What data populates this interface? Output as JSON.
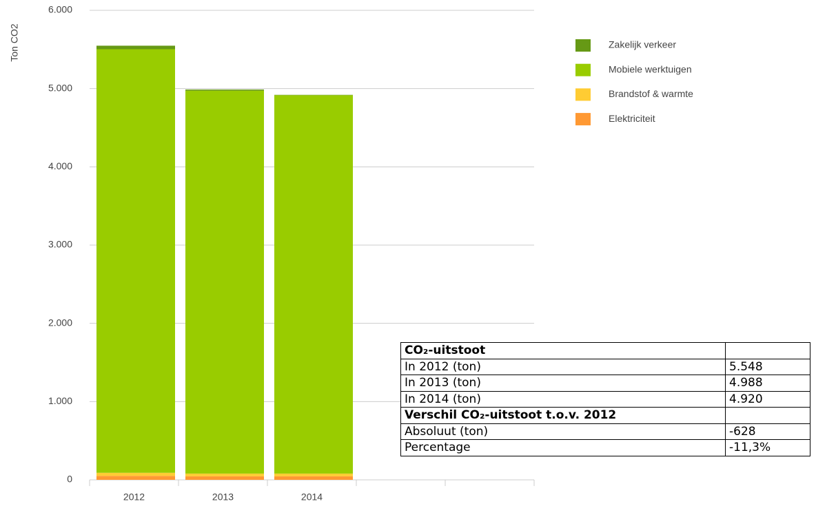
{
  "chart_data": {
    "type": "stacked_bar",
    "y_label": "Ton CO2",
    "categories": [
      "2012",
      "2013",
      "2014",
      null,
      null
    ],
    "series": [
      {
        "name": "Elektriciteit",
        "color": "#ff9933",
        "values": [
          50,
          45,
          45,
          null,
          null
        ]
      },
      {
        "name": "Brandstof & warmte",
        "color": "#ffcc33",
        "values": [
          40,
          35,
          35,
          null,
          null
        ]
      },
      {
        "name": "Mobiele werktuigen",
        "color": "#99cc00",
        "values": [
          5413,
          4893,
          4835,
          null,
          null
        ]
      },
      {
        "name": "Zakelijk verkeer",
        "color": "#669915",
        "values": [
          45,
          15,
          5,
          null,
          null
        ]
      }
    ],
    "ylim": [
      0,
      6000
    ],
    "yticks": [
      0,
      {
        "value": 1000,
        "label": "1.000"
      },
      {
        "value": 2000,
        "label": "2.000"
      },
      {
        "value": 3000,
        "label": "3.000"
      },
      {
        "value": 4000,
        "label": "4.000"
      },
      {
        "value": 5000,
        "label": "5.000"
      },
      {
        "value": 6000,
        "label": "6.000"
      }
    ],
    "grid": true,
    "legend": "right"
  },
  "table": {
    "rows": [
      [
        "CO₂-uitstoot"
      ],
      [
        "In 2012 (ton)",
        "5.548"
      ],
      [
        "In 2013 (ton)",
        "4.988"
      ],
      [
        "In 2014 (ton)",
        "4.920"
      ],
      [
        "Verschil CO₂-uitstoot t.o.v. 2012"
      ],
      [
        "Absoluut (ton)",
        "-628"
      ],
      [
        "Percentage",
        "-11,3%"
      ]
    ]
  }
}
